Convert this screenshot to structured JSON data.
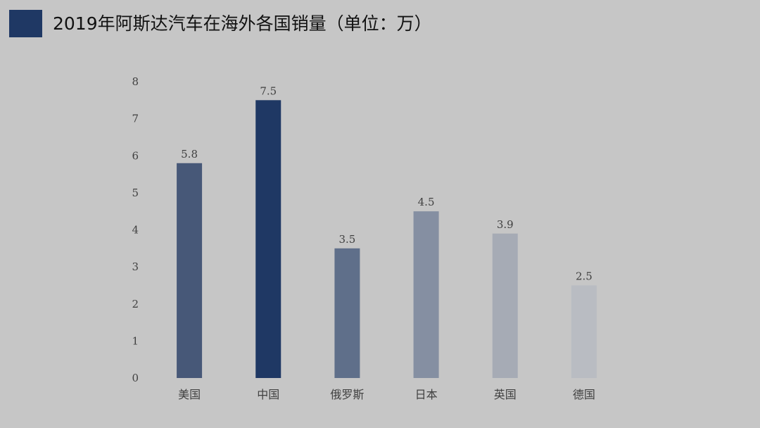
{
  "title": "2019年阿斯达汽车在海外各国销量（单位：万）",
  "colors": {
    "background": "#c6c6c6",
    "title_marker": "#1f3864"
  },
  "chart_data": {
    "type": "bar",
    "title": "2019年阿斯达汽车在海外各国销量（单位：万）",
    "categories": [
      "美国",
      "中国",
      "俄罗斯",
      "日本",
      "英国",
      "德国"
    ],
    "values": [
      5.8,
      7.5,
      3.5,
      4.5,
      3.9,
      2.5
    ],
    "bar_colors": [
      "#475878",
      "#1f3864",
      "#5f6f8a",
      "#858fa2",
      "#a6abb5",
      "#b9bcc2"
    ],
    "value_labels": [
      "5.8",
      "7.5",
      "3.5",
      "4.5",
      "3.9",
      "2.5"
    ],
    "yticks": [
      "0",
      "1",
      "2",
      "3",
      "4",
      "5",
      "6",
      "7",
      "8"
    ],
    "ylim": [
      0,
      8
    ],
    "xlabel": "",
    "ylabel": "",
    "grid": false,
    "legend": "none"
  }
}
